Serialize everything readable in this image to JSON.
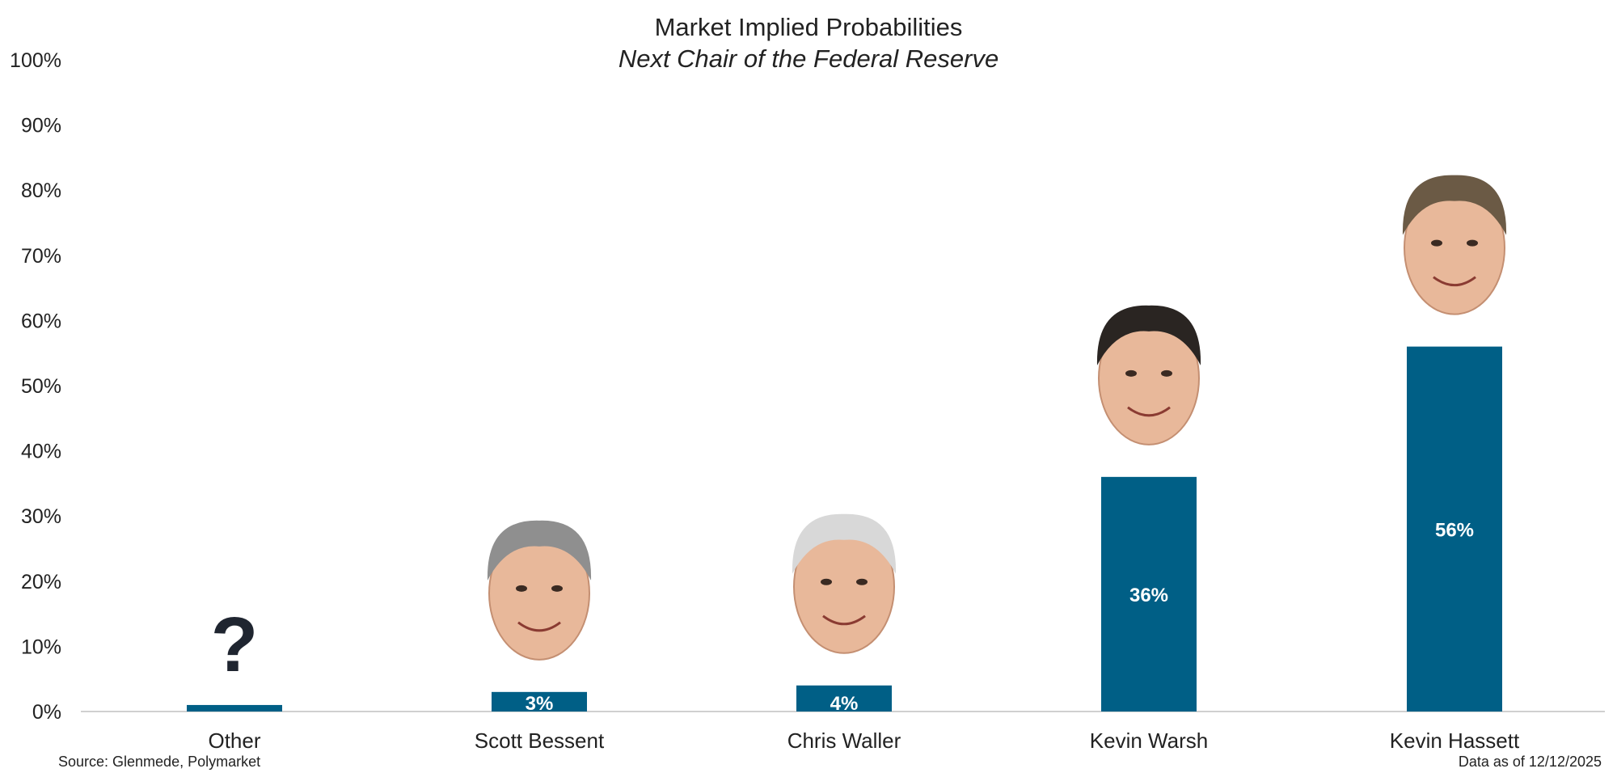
{
  "chart_data": {
    "type": "bar",
    "title": "Market Implied Probabilities",
    "subtitle": "Next Chair of the Federal Reserve",
    "categories": [
      "Other",
      "Scott Bessent",
      "Chris Waller",
      "Kevin Warsh",
      "Kevin Hassett"
    ],
    "values": [
      1,
      3,
      4,
      36,
      56
    ],
    "value_labels": [
      "",
      "3%",
      "4%",
      "36%",
      "56%"
    ],
    "unit": "%",
    "ylim": [
      0,
      100
    ],
    "yticks": [
      0,
      10,
      20,
      30,
      40,
      50,
      60,
      70,
      80,
      90,
      100
    ],
    "ytick_labels": [
      "0%",
      "10%",
      "20%",
      "30%",
      "40%",
      "50%",
      "60%",
      "70%",
      "80%",
      "90%",
      "100%"
    ],
    "xlabel": "",
    "ylabel": "",
    "grid": false,
    "annotations": [
      {
        "category": "Other",
        "text": "?"
      }
    ],
    "portraits": [
      "",
      "Scott Bessent",
      "Chris Waller",
      "Kevin Warsh",
      "Kevin Hassett"
    ]
  },
  "footer": {
    "source": "Source: Glenmede, Polymarket",
    "date": "Data as of 12/12/2025"
  },
  "colors": {
    "bar": "#005f86",
    "bar_label": "#ffffff",
    "text": "#222222",
    "axis": "#d0d0d0",
    "question_mark": "#1f2530"
  }
}
